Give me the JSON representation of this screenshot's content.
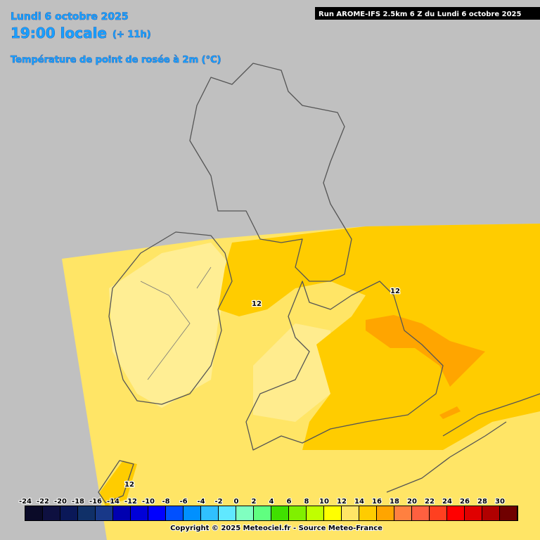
{
  "header": {
    "date": "Lundi 6 octobre 2025",
    "time": "19:00 locale",
    "lead": "(+ 11h)",
    "parameter": "Température de point de rosée à 2m (°C)",
    "run": "Run AROME-IFS 2.5km 6 Z du Lundi 6 octobre 2025"
  },
  "contour_labels": [
    "12",
    "12",
    "12"
  ],
  "legend": {
    "labels": [
      -24,
      -22,
      -20,
      -18,
      -16,
      -14,
      -12,
      -10,
      -8,
      -6,
      -4,
      -2,
      0,
      2,
      4,
      6,
      8,
      10,
      12,
      14,
      16,
      18,
      20,
      22,
      24,
      26,
      28,
      30
    ],
    "colors": [
      "#0a0a28",
      "#0e1040",
      "#0a1858",
      "#103068",
      "#183888",
      "#0000b0",
      "#0000d8",
      "#0000ff",
      "#0050ff",
      "#0090ff",
      "#30c0ff",
      "#60e8ff",
      "#80ffc0",
      "#60ff80",
      "#40e000",
      "#80f000",
      "#c0ff00",
      "#ffff00",
      "#ffe566",
      "#ffcc00",
      "#ffa500",
      "#ff8040",
      "#ff6040",
      "#ff4020",
      "#ff0000",
      "#e00000",
      "#b00000",
      "#700000"
    ]
  },
  "footer": {
    "copyright": "Copyright © 2025 Meteociel.fr - Source Meteo-France"
  }
}
